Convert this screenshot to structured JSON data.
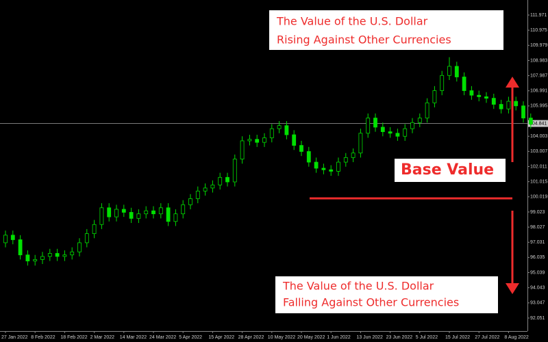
{
  "chart_data": {
    "type": "candlestick",
    "color": "#00e000",
    "categories": [
      "27 Jan 2022",
      null,
      null,
      null,
      "8 Feb 2022",
      null,
      null,
      null,
      "18 Feb 2022",
      null,
      null,
      null,
      "2 Mar 2022",
      null,
      null,
      null,
      "14 Mar 2022",
      null,
      null,
      null,
      "24 Mar 2022",
      null,
      null,
      null,
      "5 Apr 2022",
      null,
      null,
      null,
      "15 Apr 2022",
      null,
      null,
      null,
      "28 Apr 2022",
      null,
      null,
      null,
      "10 May 2022",
      null,
      null,
      null,
      "20 May 2022",
      null,
      null,
      null,
      "1 Jun 2022",
      null,
      null,
      null,
      "13 Jun 2022",
      null,
      null,
      null,
      "23 Jun 2022",
      null,
      null,
      null,
      "5 Jul 2022",
      null,
      null,
      null,
      "15 Jul 2022",
      null,
      null,
      null,
      "27 Jul 2022",
      null,
      null,
      null,
      "8 Aug 2022",
      null,
      null,
      null
    ],
    "open": [
      97.0,
      97.5,
      97.2,
      96.2,
      95.8,
      95.9,
      96.1,
      96.3,
      96.1,
      96.2,
      96.4,
      97.0,
      97.6,
      98.2,
      99.3,
      98.7,
      99.2,
      99.0,
      98.6,
      98.9,
      99.1,
      98.9,
      99.3,
      98.4,
      98.9,
      99.5,
      99.9,
      100.4,
      100.6,
      100.8,
      101.3,
      101.0,
      102.5,
      103.7,
      103.8,
      103.6,
      103.9,
      104.5,
      104.7,
      104.1,
      103.4,
      103.0,
      102.3,
      101.9,
      101.8,
      101.7,
      102.3,
      102.6,
      102.9,
      104.2,
      105.2,
      104.6,
      104.3,
      104.2,
      104.0,
      104.5,
      104.9,
      105.2,
      106.2,
      107.0,
      108.0,
      108.6,
      107.9,
      107.0,
      106.7,
      106.6,
      106.5,
      106.1,
      105.8,
      106.3,
      106.0,
      105.2
    ],
    "high": [
      97.8,
      97.8,
      97.5,
      96.5,
      96.2,
      96.4,
      96.6,
      96.6,
      96.5,
      96.7,
      97.3,
      97.9,
      98.5,
      99.6,
      99.6,
      99.5,
      99.5,
      99.3,
      99.2,
      99.4,
      99.4,
      99.6,
      99.6,
      99.2,
      99.8,
      100.2,
      100.7,
      100.9,
      101.1,
      101.6,
      101.6,
      102.8,
      104.0,
      104.1,
      104.1,
      104.2,
      104.8,
      105.0,
      105.0,
      104.4,
      103.7,
      103.3,
      102.6,
      102.2,
      102.1,
      102.6,
      102.9,
      103.2,
      104.5,
      105.5,
      105.5,
      104.9,
      104.6,
      104.5,
      104.8,
      105.2,
      105.5,
      106.5,
      107.3,
      108.3,
      109.2,
      108.9,
      108.2,
      107.3,
      107.0,
      106.9,
      106.8,
      106.4,
      106.6,
      106.6,
      106.3,
      105.5
    ],
    "low": [
      96.7,
      96.9,
      95.9,
      95.5,
      95.5,
      95.6,
      95.8,
      95.8,
      95.8,
      95.9,
      96.1,
      96.7,
      97.3,
      97.9,
      98.4,
      98.4,
      98.7,
      98.3,
      98.3,
      98.6,
      98.6,
      98.6,
      98.1,
      98.1,
      98.6,
      99.2,
      99.6,
      100.1,
      100.3,
      100.5,
      100.7,
      100.7,
      102.2,
      103.4,
      103.3,
      103.3,
      103.6,
      104.2,
      103.8,
      103.1,
      102.7,
      102.0,
      101.6,
      101.5,
      101.4,
      101.4,
      102.0,
      102.3,
      102.6,
      103.9,
      104.3,
      104.0,
      103.9,
      103.7,
      103.7,
      104.2,
      104.6,
      104.9,
      105.9,
      106.7,
      107.7,
      107.6,
      106.7,
      106.4,
      106.3,
      106.2,
      105.8,
      105.5,
      105.5,
      105.7,
      104.9,
      104.5
    ],
    "close": [
      97.5,
      97.2,
      96.2,
      95.8,
      95.9,
      96.1,
      96.3,
      96.1,
      96.2,
      96.4,
      97.0,
      97.6,
      98.2,
      99.3,
      98.7,
      99.2,
      99.0,
      98.6,
      98.9,
      99.1,
      98.9,
      99.3,
      98.4,
      98.9,
      99.5,
      99.9,
      100.4,
      100.6,
      100.8,
      101.3,
      101.0,
      102.5,
      103.7,
      103.8,
      103.6,
      103.9,
      104.5,
      104.7,
      104.1,
      103.4,
      103.0,
      102.3,
      101.9,
      101.8,
      101.7,
      102.3,
      102.6,
      102.9,
      104.2,
      105.2,
      104.6,
      104.3,
      104.2,
      104.0,
      104.5,
      104.9,
      105.2,
      106.2,
      107.0,
      108.0,
      108.6,
      107.9,
      107.0,
      106.7,
      106.6,
      106.5,
      106.1,
      105.8,
      106.3,
      106.0,
      105.2,
      104.8
    ],
    "ylim": [
      91.24,
      112.96
    ],
    "yticks": [
      111.971,
      110.975,
      109.979,
      108.983,
      107.987,
      106.991,
      105.995,
      104.003,
      103.007,
      102.011,
      101.015,
      100.019,
      99.023,
      98.027,
      97.031,
      96.035,
      95.039,
      94.043,
      93.047,
      92.051
    ],
    "current_price": 104.841,
    "annotations": {
      "rising": [
        "The Value of the U.S. Dollar",
        "Rising Against Other Currencies"
      ],
      "base": "Base Value",
      "falling": [
        "The Value of the U.S. Dollar",
        "Falling Against Other Currencies"
      ]
    }
  }
}
